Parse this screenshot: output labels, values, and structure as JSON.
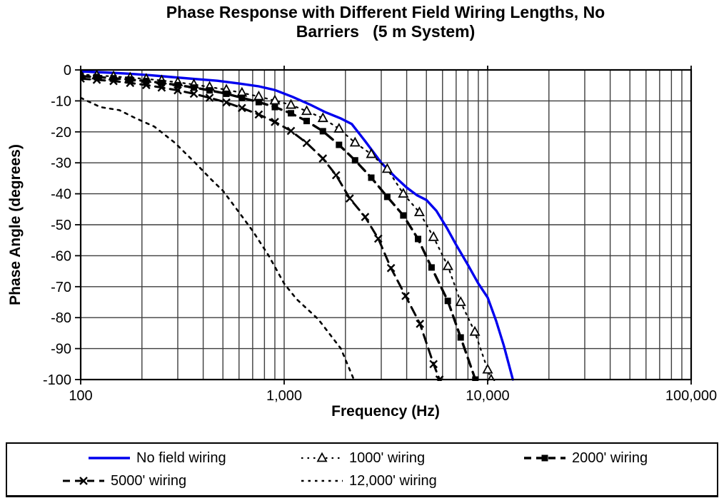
{
  "title": {
    "line1": "Phase Response with Different Field Wiring Lengths, No",
    "line2": "Barriers   (5 m System)"
  },
  "axes": {
    "x_title": "Frequency (Hz)",
    "y_title": "Phase Angle (degrees)",
    "x_scale": "log",
    "x_ticks": [
      {
        "value": 100,
        "label": "100"
      },
      {
        "value": 1000,
        "label": "1,000"
      },
      {
        "value": 10000,
        "label": "10,000"
      },
      {
        "value": 100000,
        "label": "100,000"
      }
    ],
    "y_ticks": [
      {
        "value": 0,
        "label": "0"
      },
      {
        "value": -10,
        "label": "-10"
      },
      {
        "value": -20,
        "label": "-20"
      },
      {
        "value": -30,
        "label": "-30"
      },
      {
        "value": -40,
        "label": "-40"
      },
      {
        "value": -50,
        "label": "-50"
      },
      {
        "value": -60,
        "label": "-60"
      },
      {
        "value": -70,
        "label": "-70"
      },
      {
        "value": -80,
        "label": "-80"
      },
      {
        "value": -90,
        "label": "-90"
      },
      {
        "value": -100,
        "label": "-100"
      }
    ]
  },
  "colors": {
    "no_field_wiring_line": "#0000EE",
    "wired_lines": "#000000",
    "gridline": "#3D3D3D",
    "axis": "#000000",
    "background": "#FFFFFF"
  },
  "chart_data": {
    "type": "line",
    "title": "Phase Response with Different Field Wiring Lengths, No Barriers (5 m System)",
    "xlabel": "Frequency (Hz)",
    "ylabel": "Phase Angle (degrees)",
    "x_scale": "log",
    "xlim": [
      100,
      100000
    ],
    "ylim": [
      -100,
      0
    ],
    "grid": "major-horizontal, log-minor-vertical",
    "legend_position": "bottom",
    "series": [
      {
        "name": "No field wiring",
        "color": "#0000EE",
        "style": "solid",
        "marker": "none",
        "points": [
          [
            100,
            -0.5
          ],
          [
            130,
            -0.8
          ],
          [
            170,
            -1.2
          ],
          [
            220,
            -1.7
          ],
          [
            280,
            -2.3
          ],
          [
            360,
            -2.9
          ],
          [
            470,
            -3.5
          ],
          [
            600,
            -4.4
          ],
          [
            750,
            -5.3
          ],
          [
            900,
            -6.5
          ],
          [
            1100,
            -8.7
          ],
          [
            1350,
            -11.3
          ],
          [
            1600,
            -13.7
          ],
          [
            1900,
            -15.7
          ],
          [
            2150,
            -17.5
          ],
          [
            2500,
            -23
          ],
          [
            3000,
            -30
          ],
          [
            3500,
            -34.5
          ],
          [
            4000,
            -38
          ],
          [
            4500,
            -40.5
          ],
          [
            5000,
            -42
          ],
          [
            5600,
            -45.5
          ],
          [
            6300,
            -51
          ],
          [
            7000,
            -56.5
          ],
          [
            8000,
            -63
          ],
          [
            9000,
            -69
          ],
          [
            10000,
            -73.5
          ],
          [
            11000,
            -81
          ],
          [
            12000,
            -89
          ],
          [
            13300,
            -100
          ]
        ]
      },
      {
        "name": "1000' wiring",
        "color": "#000000",
        "style": "dash-dot",
        "marker": "triangle-open",
        "points": [
          [
            100,
            -1.5
          ],
          [
            120,
            -1.8
          ],
          [
            145,
            -2.1
          ],
          [
            175,
            -2.5
          ],
          [
            210,
            -2.9
          ],
          [
            250,
            -3.4
          ],
          [
            300,
            -4.0
          ],
          [
            360,
            -4.7
          ],
          [
            430,
            -5.5
          ],
          [
            520,
            -6.4
          ],
          [
            620,
            -7.4
          ],
          [
            750,
            -8.6
          ],
          [
            900,
            -9.9
          ],
          [
            1080,
            -11.3
          ],
          [
            1290,
            -13.3
          ],
          [
            1550,
            -15.6
          ],
          [
            1860,
            -19.0
          ],
          [
            2230,
            -23.5
          ],
          [
            2680,
            -27.2
          ],
          [
            3210,
            -32.0
          ],
          [
            3850,
            -40.0
          ],
          [
            4620,
            -46.0
          ],
          [
            5420,
            -54.0
          ],
          [
            6380,
            -63.4
          ],
          [
            7370,
            -75.0
          ],
          [
            8650,
            -84.6
          ],
          [
            10000,
            -96.8
          ],
          [
            10400,
            -100
          ]
        ]
      },
      {
        "name": "2000' wiring",
        "color": "#000000",
        "style": "dash",
        "marker": "square-filled",
        "points": [
          [
            100,
            -2.0
          ],
          [
            120,
            -2.3
          ],
          [
            145,
            -2.7
          ],
          [
            175,
            -3.1
          ],
          [
            210,
            -3.6
          ],
          [
            250,
            -4.2
          ],
          [
            300,
            -4.9
          ],
          [
            360,
            -5.7
          ],
          [
            430,
            -6.6
          ],
          [
            520,
            -7.7
          ],
          [
            620,
            -9.0
          ],
          [
            750,
            -10.4
          ],
          [
            900,
            -12.0
          ],
          [
            1080,
            -14.0
          ],
          [
            1290,
            -16.5
          ],
          [
            1550,
            -19.8
          ],
          [
            1860,
            -24.2
          ],
          [
            2230,
            -29.2
          ],
          [
            2680,
            -34.8
          ],
          [
            3210,
            -41.0
          ],
          [
            3850,
            -47.0
          ],
          [
            4550,
            -54.6
          ],
          [
            5300,
            -63.8
          ],
          [
            6370,
            -74.6
          ],
          [
            7370,
            -86.4
          ],
          [
            8700,
            -100
          ]
        ]
      },
      {
        "name": "5000' wiring",
        "color": "#000000",
        "style": "dash",
        "marker": "x",
        "points": [
          [
            100,
            -2.8
          ],
          [
            120,
            -3.2
          ],
          [
            145,
            -3.6
          ],
          [
            175,
            -4.2
          ],
          [
            210,
            -4.9
          ],
          [
            250,
            -5.7
          ],
          [
            300,
            -6.6
          ],
          [
            360,
            -7.7
          ],
          [
            430,
            -9.0
          ],
          [
            520,
            -10.5
          ],
          [
            620,
            -12.3
          ],
          [
            750,
            -14.4
          ],
          [
            900,
            -16.8
          ],
          [
            1080,
            -19.7
          ],
          [
            1290,
            -23.6
          ],
          [
            1550,
            -28.6
          ],
          [
            1800,
            -34.0
          ],
          [
            2100,
            -41.5
          ],
          [
            2500,
            -47.5
          ],
          [
            2900,
            -54.5
          ],
          [
            3350,
            -64.0
          ],
          [
            3950,
            -73.0
          ],
          [
            4650,
            -82.0
          ],
          [
            5420,
            -95.0
          ],
          [
            5800,
            -100
          ]
        ]
      },
      {
        "name": "12,000' wiring",
        "color": "#000000",
        "style": "dotted",
        "marker": "none",
        "points": [
          [
            100,
            -9.0
          ],
          [
            125,
            -12.0
          ],
          [
            155,
            -13.0
          ],
          [
            185,
            -15.5
          ],
          [
            230,
            -18.3
          ],
          [
            290,
            -23.5
          ],
          [
            365,
            -30.0
          ],
          [
            440,
            -35.5
          ],
          [
            500,
            -39.0
          ],
          [
            600,
            -46.0
          ],
          [
            700,
            -52.0
          ],
          [
            840,
            -60.0
          ],
          [
            1000,
            -69.0
          ],
          [
            1150,
            -74.0
          ],
          [
            1470,
            -80.5
          ],
          [
            1900,
            -90.0
          ],
          [
            2200,
            -100
          ]
        ]
      }
    ]
  }
}
